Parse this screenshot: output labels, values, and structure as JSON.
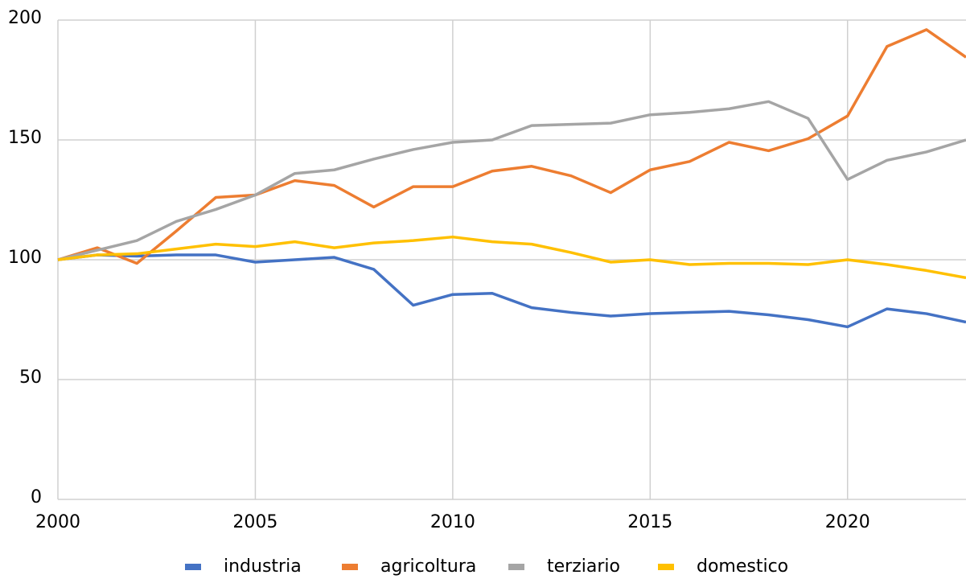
{
  "chart_data": {
    "type": "line",
    "x": [
      2000,
      2001,
      2002,
      2003,
      2004,
      2005,
      2006,
      2007,
      2008,
      2009,
      2010,
      2011,
      2012,
      2013,
      2014,
      2015,
      2016,
      2017,
      2018,
      2019,
      2020,
      2021,
      2022,
      2023
    ],
    "series": [
      {
        "name": "industria",
        "color": "#4472c4",
        "values": [
          100,
          102,
          101.5,
          102,
          102,
          99,
          100,
          101,
          96,
          81,
          85.5,
          86,
          80,
          78,
          76.5,
          77.5,
          78,
          78.5,
          77,
          75,
          72,
          79.5,
          77.5,
          74
        ]
      },
      {
        "name": "agricoltura",
        "color": "#ed7d31",
        "values": [
          100,
          105,
          98.5,
          112,
          126,
          127,
          133,
          131,
          122,
          130.5,
          130.5,
          137,
          139,
          135,
          128,
          137.5,
          141,
          149,
          145.5,
          150.5,
          160,
          189,
          196,
          184.5
        ]
      },
      {
        "name": "terziario",
        "color": "#a5a5a5",
        "values": [
          100,
          104,
          108,
          116,
          121,
          127,
          136,
          137.5,
          142,
          146,
          149,
          150,
          156,
          156.5,
          157,
          160.5,
          161.5,
          163,
          166,
          159,
          133.5,
          141.5,
          145,
          150
        ]
      },
      {
        "name": "domestico",
        "color": "#ffc000",
        "values": [
          100,
          102,
          102.5,
          104.5,
          106.5,
          105.5,
          107.5,
          105,
          107,
          108,
          109.5,
          107.5,
          106.5,
          103,
          99,
          100,
          98,
          98.5,
          98.5,
          98,
          100,
          98,
          95.5,
          92.5
        ]
      }
    ],
    "xlim": [
      2000,
      2023
    ],
    "xticks": [
      2000,
      2005,
      2010,
      2015,
      2020
    ],
    "ylim": [
      0,
      200
    ],
    "yticks": [
      0,
      50,
      100,
      150,
      200
    ],
    "grid": true,
    "legend": "bottom"
  }
}
